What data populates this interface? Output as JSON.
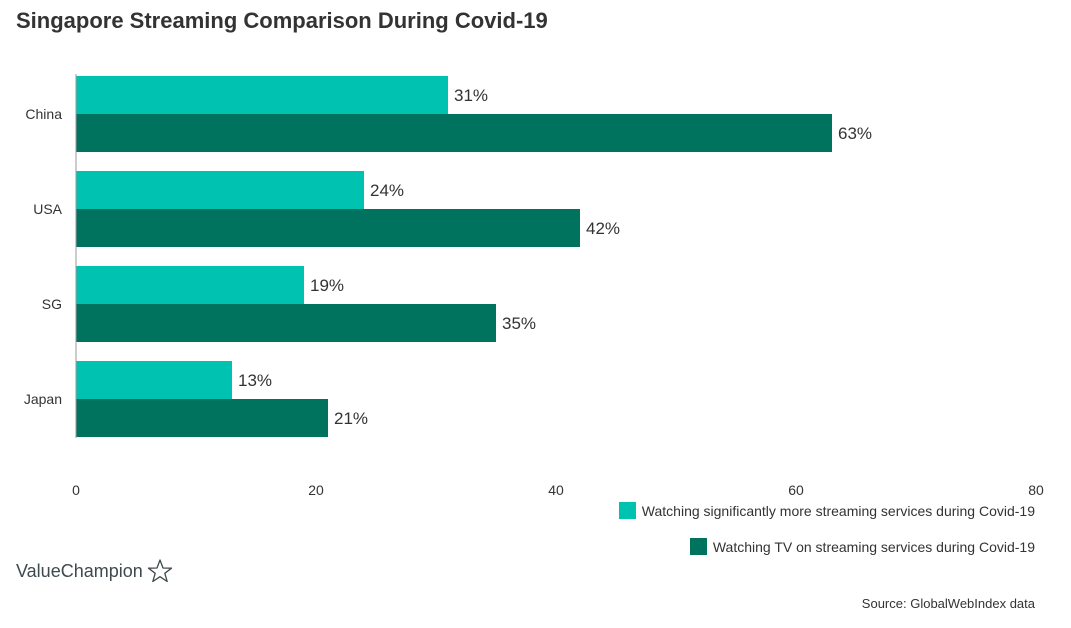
{
  "title": "Singapore Streaming Comparison During Covid-19",
  "brand": "ValueChampion",
  "source": "Source: GlobalWebIndex data",
  "colors": {
    "series1": "#00c2b0",
    "series2": "#00735e",
    "axis": "#999999",
    "text": "#333333"
  },
  "chart_data": {
    "type": "bar",
    "orientation": "horizontal",
    "title": "Singapore Streaming Comparison During Covid-19",
    "categories": [
      "China",
      "USA",
      "SG",
      "Japan"
    ],
    "series": [
      {
        "name": "Watching significantly more streaming services during Covid-19",
        "values": [
          31,
          24,
          19,
          13
        ],
        "labels": [
          "31%",
          "24%",
          "19%",
          "13%"
        ],
        "color": "#00c2b0"
      },
      {
        "name": "Watching TV on streaming services during Covid-19",
        "values": [
          63,
          42,
          35,
          21
        ],
        "labels": [
          "63%",
          "42%",
          "35%",
          "21%"
        ],
        "color": "#00735e"
      }
    ],
    "xlim": [
      0,
      80
    ],
    "xticks": [
      0,
      20,
      40,
      60,
      80
    ],
    "xlabel": "",
    "ylabel": "",
    "grid": false,
    "legend_position": "bottom-right"
  }
}
